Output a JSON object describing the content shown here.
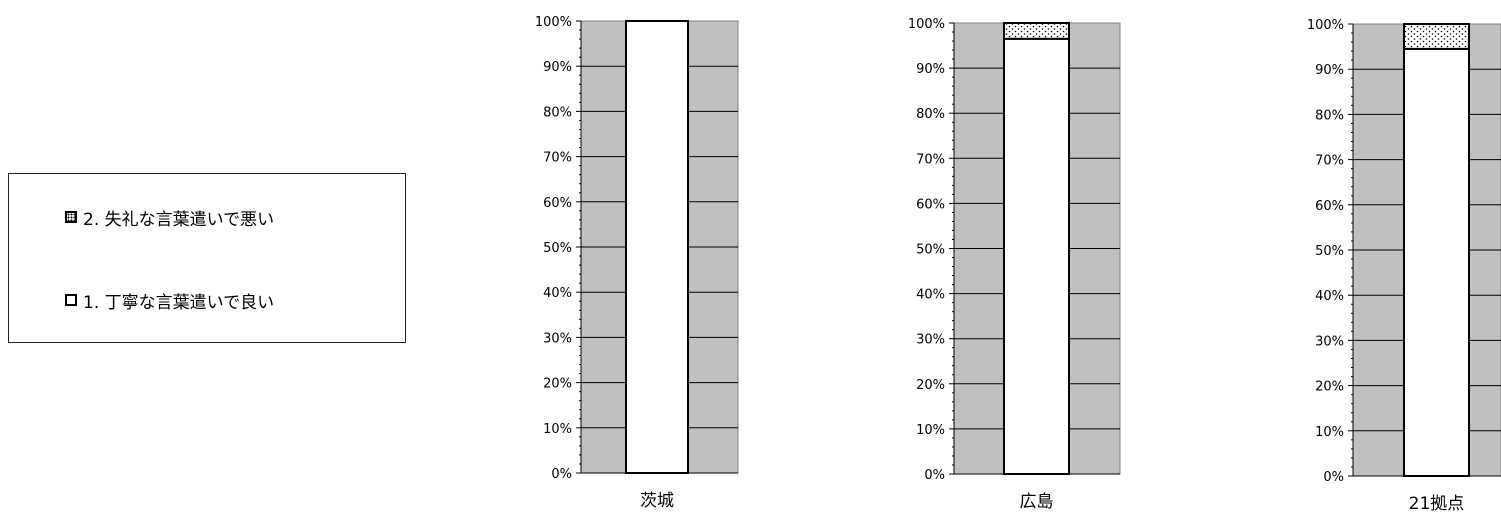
{
  "legend": {
    "items": [
      {
        "label": "2. 失礼な言葉遣いで悪い",
        "pattern": "dots"
      },
      {
        "label": "1. 丁寧な言葉遣いで良い",
        "pattern": "white"
      }
    ]
  },
  "chart_data": [
    {
      "type": "bar",
      "stacked": true,
      "percent": true,
      "categories": [
        "茨城"
      ],
      "series": [
        {
          "name": "1. 丁寧な言葉遣いで良い",
          "values": [
            100
          ]
        },
        {
          "name": "2. 失礼な言葉遣いで悪い",
          "values": [
            0
          ]
        }
      ],
      "ylim": [
        0,
        100
      ],
      "yticks": [
        "0%",
        "10%",
        "20%",
        "30%",
        "40%",
        "50%",
        "60%",
        "70%",
        "80%",
        "90%",
        "100%"
      ],
      "plot_background": "#c0c0c0",
      "grid": true
    },
    {
      "type": "bar",
      "stacked": true,
      "percent": true,
      "categories": [
        "広島"
      ],
      "series": [
        {
          "name": "1. 丁寧な言葉遣いで良い",
          "values": [
            96.5
          ]
        },
        {
          "name": "2. 失礼な言葉遣いで悪い",
          "values": [
            3.5
          ]
        }
      ],
      "ylim": [
        0,
        100
      ],
      "yticks": [
        "0%",
        "10%",
        "20%",
        "30%",
        "40%",
        "50%",
        "60%",
        "70%",
        "80%",
        "90%",
        "100%"
      ],
      "plot_background": "#c0c0c0",
      "grid": true
    },
    {
      "type": "bar",
      "stacked": true,
      "percent": true,
      "categories": [
        "21拠点"
      ],
      "series": [
        {
          "name": "1. 丁寧な言葉遣いで良い",
          "values": [
            94.5
          ]
        },
        {
          "name": "2. 失礼な言葉遣いで悪い",
          "values": [
            5.5
          ]
        }
      ],
      "ylim": [
        0,
        100
      ],
      "yticks": [
        "0%",
        "10%",
        "20%",
        "30%",
        "40%",
        "50%",
        "60%",
        "70%",
        "80%",
        "90%",
        "100%"
      ],
      "plot_background": "#c0c0c0",
      "grid": true
    }
  ]
}
